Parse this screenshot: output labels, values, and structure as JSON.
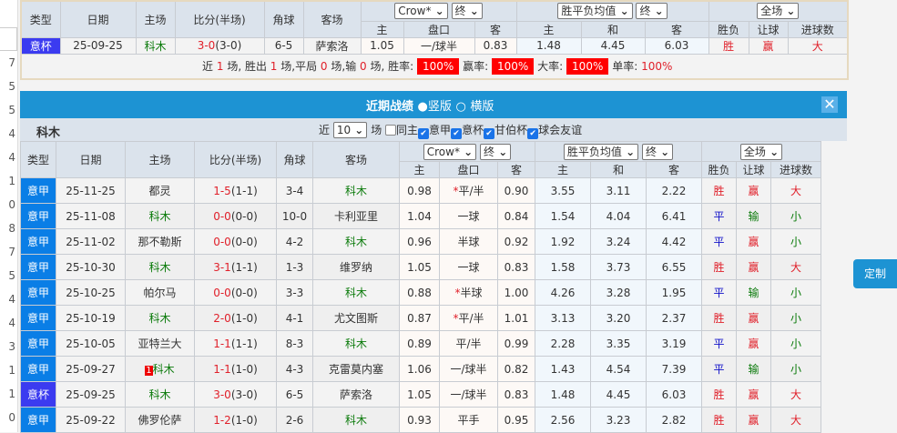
{
  "background_numbers": [
    "7",
    "5",
    "5",
    "4",
    "4",
    "1",
    "0",
    "8",
    "7",
    "5",
    "4",
    "4",
    "3",
    "1",
    "1",
    "0"
  ],
  "headers": {
    "type": "类型",
    "date": "日期",
    "home": "主场",
    "score": "比分(半场)",
    "corner": "角球",
    "away": "客场",
    "h": "主",
    "line": "盘口",
    "a": "客",
    "w": "主",
    "d": "和",
    "l": "客",
    "result": "胜负",
    "handicap": "让球",
    "goals": "进球数"
  },
  "selectors": {
    "company": "Crow*",
    "time1": "终",
    "avg": "胜平负均值",
    "time2": "终",
    "period": "全场"
  },
  "top_match": {
    "type": "意杯",
    "date": "25-09-25",
    "home": "科木",
    "score": "3-0",
    "half": "(3-0)",
    "corner": "6-5",
    "away": "萨索洛",
    "h": "1.05",
    "line": "一/球半",
    "a": "0.83",
    "w": "1.48",
    "d": "4.45",
    "l": "6.03",
    "result": "胜",
    "handicap": "赢",
    "goals": "大"
  },
  "summary": {
    "p1": "近",
    "n": "1",
    "p2": "场, 胜出",
    "win": "1",
    "p3": "场,平局",
    "draw": "0",
    "p4": "场,输",
    "loss": "0",
    "p5": "场, 胜率:",
    "win_rate": "100%",
    "p6": "赢率:",
    "ying_rate": "100%",
    "p7": "大率:",
    "big_rate": "100%",
    "p8": "单率:",
    "odd_rate": "100%"
  },
  "bar": {
    "title": "近期战绩",
    "opt1": "竖版",
    "opt2": "横版",
    "selected": "竖版"
  },
  "section": {
    "team": "科木",
    "recent_label": "近",
    "count": "10",
    "games_label": "场",
    "filters": [
      {
        "label": "同主",
        "checked": false
      },
      {
        "label": "意甲",
        "checked": true
      },
      {
        "label": "意杯",
        "checked": true
      },
      {
        "label": "甘伯杯",
        "checked": true
      },
      {
        "label": "球会友谊",
        "checked": true
      }
    ]
  },
  "rows": [
    {
      "type": "意甲",
      "date": "25-11-25",
      "home": "都灵",
      "score": "1-5",
      "half": "(1-1)",
      "corner": "3-4",
      "away": "科木",
      "h": "0.98",
      "line": "平/半",
      "star": true,
      "a": "0.90",
      "w": "3.55",
      "d": "3.11",
      "l": "2.22",
      "result": "胜",
      "handicap": "赢",
      "goals": "大"
    },
    {
      "type": "意甲",
      "date": "25-11-08",
      "home": "科木",
      "score": "0-0",
      "half": "(0-0)",
      "corner": "10-0",
      "away": "卡利亚里",
      "h": "1.04",
      "line": "一球",
      "a": "0.84",
      "w": "1.54",
      "d": "4.04",
      "l": "6.41",
      "result": "平",
      "handicap": "输",
      "goals": "小"
    },
    {
      "type": "意甲",
      "date": "25-11-02",
      "home": "那不勒斯",
      "score": "0-0",
      "half": "(0-0)",
      "corner": "4-2",
      "away": "科木",
      "h": "0.96",
      "line": "半球",
      "a": "0.92",
      "w": "1.92",
      "d": "3.24",
      "l": "4.42",
      "result": "平",
      "handicap": "赢",
      "goals": "小"
    },
    {
      "type": "意甲",
      "date": "25-10-30",
      "home": "科木",
      "score": "3-1",
      "half": "(1-1)",
      "corner": "1-3",
      "away": "维罗纳",
      "h": "1.05",
      "line": "一球",
      "a": "0.83",
      "w": "1.58",
      "d": "3.73",
      "l": "6.55",
      "result": "胜",
      "handicap": "赢",
      "goals": "大"
    },
    {
      "type": "意甲",
      "date": "25-10-25",
      "home": "帕尔马",
      "score": "0-0",
      "half": "(0-0)",
      "corner": "3-3",
      "away": "科木",
      "h": "0.88",
      "line": "半球",
      "star": true,
      "a": "1.00",
      "w": "4.26",
      "d": "3.28",
      "l": "1.95",
      "result": "平",
      "handicap": "输",
      "goals": "小"
    },
    {
      "type": "意甲",
      "date": "25-10-19",
      "home": "科木",
      "score": "2-0",
      "half": "(1-0)",
      "corner": "4-1",
      "away": "尤文图斯",
      "h": "0.87",
      "line": "平/半",
      "star": true,
      "a": "1.01",
      "w": "3.13",
      "d": "3.20",
      "l": "2.37",
      "result": "胜",
      "handicap": "赢",
      "goals": "小"
    },
    {
      "type": "意甲",
      "date": "25-10-05",
      "home": "亚特兰大",
      "score": "1-1",
      "half": "(1-1)",
      "corner": "8-3",
      "away": "科木",
      "h": "0.89",
      "line": "平/半",
      "a": "0.99",
      "w": "2.28",
      "d": "3.35",
      "l": "3.19",
      "result": "平",
      "handicap": "赢",
      "goals": "小"
    },
    {
      "type": "意甲",
      "date": "25-09-27",
      "home": "科木",
      "red_card": "1",
      "score": "1-1",
      "half": "(1-0)",
      "corner": "4-3",
      "away": "克雷莫内塞",
      "h": "1.06",
      "line": "一/球半",
      "a": "0.82",
      "w": "1.43",
      "d": "4.54",
      "l": "7.39",
      "result": "平",
      "handicap": "输",
      "goals": "小"
    },
    {
      "type": "意杯",
      "date": "25-09-25",
      "home": "科木",
      "score": "3-0",
      "half": "(3-0)",
      "corner": "6-5",
      "away": "萨索洛",
      "h": "1.05",
      "line": "一/球半",
      "a": "0.83",
      "w": "1.48",
      "d": "4.45",
      "l": "6.03",
      "result": "胜",
      "handicap": "赢",
      "goals": "大"
    },
    {
      "type": "意甲",
      "date": "25-09-22",
      "home": "佛罗伦萨",
      "score": "1-2",
      "half": "(1-0)",
      "corner": "2-6",
      "away": "科木",
      "h": "0.93",
      "line": "平手",
      "a": "0.95",
      "w": "2.56",
      "d": "3.23",
      "l": "2.82",
      "result": "胜",
      "handicap": "赢",
      "goals": "大"
    }
  ],
  "customize_button": "定制",
  "colors": {
    "bar": "#1d93d3",
    "league_type": "#0a7ee6",
    "cup_type": "#3b3bf0",
    "win": "#e0202a",
    "team": "#0a7a0a"
  }
}
